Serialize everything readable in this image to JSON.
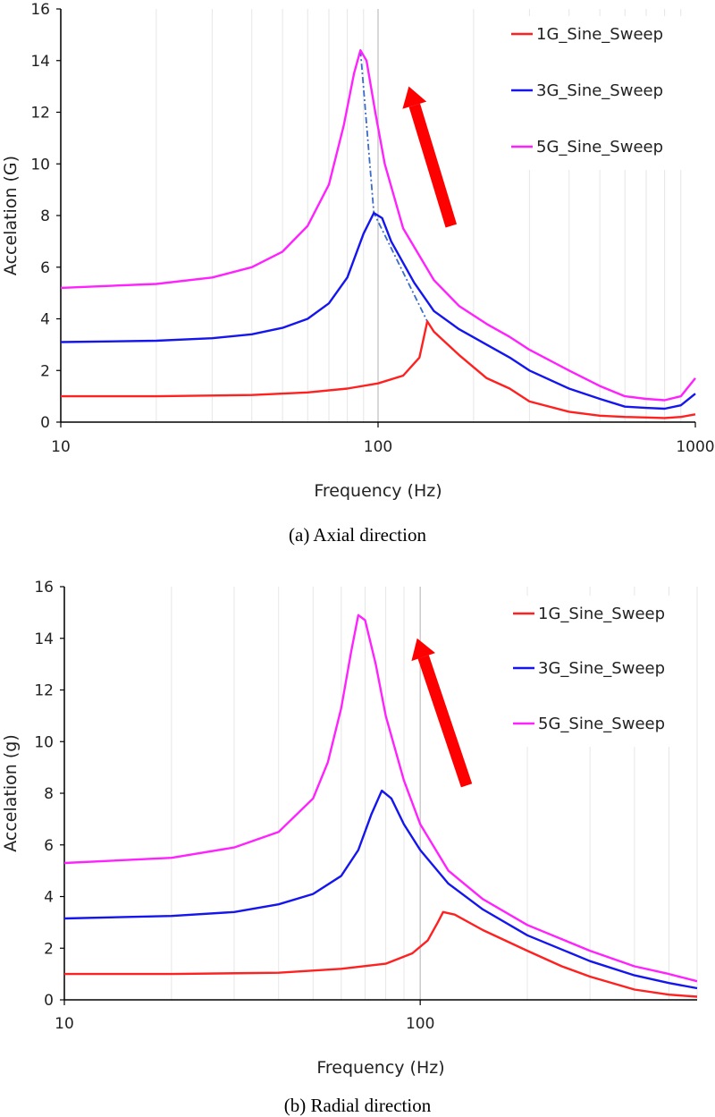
{
  "chart_data": [
    {
      "type": "line",
      "xscale": "log",
      "xlim": [
        10,
        1000
      ],
      "ylim": [
        0,
        16
      ],
      "yticks": [
        0,
        2,
        4,
        6,
        8,
        10,
        12,
        14,
        16
      ],
      "xtick_labels": [
        "10",
        "100",
        "1000"
      ],
      "xlabel": "Frequency (Hz)",
      "ylabel": "Accelation (G)",
      "caption": "(a) Axial direction",
      "legend_position": "top-right",
      "series": [
        {
          "name": "1G_Sine_Sweep",
          "color": "#ff2020",
          "points": [
            [
              10,
              1.0
            ],
            [
              20,
              1.0
            ],
            [
              40,
              1.05
            ],
            [
              60,
              1.15
            ],
            [
              80,
              1.3
            ],
            [
              100,
              1.5
            ],
            [
              120,
              1.8
            ],
            [
              135,
              2.5
            ],
            [
              143,
              3.9
            ],
            [
              150,
              3.5
            ],
            [
              180,
              2.6
            ],
            [
              220,
              1.7
            ],
            [
              260,
              1.3
            ],
            [
              300,
              0.8
            ],
            [
              400,
              0.4
            ],
            [
              500,
              0.25
            ],
            [
              600,
              0.2
            ],
            [
              700,
              0.18
            ],
            [
              800,
              0.16
            ],
            [
              900,
              0.2
            ],
            [
              1000,
              0.3
            ]
          ]
        },
        {
          "name": "3G_Sine_Sweep",
          "color": "#1515ee",
          "points": [
            [
              10,
              3.1
            ],
            [
              20,
              3.15
            ],
            [
              30,
              3.25
            ],
            [
              40,
              3.4
            ],
            [
              50,
              3.65
            ],
            [
              60,
              4.0
            ],
            [
              70,
              4.6
            ],
            [
              80,
              5.6
            ],
            [
              90,
              7.3
            ],
            [
              97,
              8.1
            ],
            [
              103,
              7.9
            ],
            [
              110,
              7.0
            ],
            [
              130,
              5.4
            ],
            [
              150,
              4.3
            ],
            [
              180,
              3.6
            ],
            [
              220,
              3.0
            ],
            [
              260,
              2.5
            ],
            [
              300,
              2.0
            ],
            [
              400,
              1.3
            ],
            [
              500,
              0.9
            ],
            [
              600,
              0.6
            ],
            [
              700,
              0.55
            ],
            [
              800,
              0.52
            ],
            [
              900,
              0.65
            ],
            [
              1000,
              1.1
            ]
          ]
        },
        {
          "name": "5G_Sine_Sweep",
          "color": "#ff22ff",
          "points": [
            [
              10,
              5.2
            ],
            [
              20,
              5.35
            ],
            [
              30,
              5.6
            ],
            [
              40,
              6.0
            ],
            [
              50,
              6.6
            ],
            [
              60,
              7.6
            ],
            [
              70,
              9.2
            ],
            [
              78,
              11.5
            ],
            [
              84,
              13.5
            ],
            [
              88,
              14.4
            ],
            [
              92,
              14.0
            ],
            [
              98,
              12.0
            ],
            [
              105,
              10.0
            ],
            [
              120,
              7.5
            ],
            [
              150,
              5.5
            ],
            [
              180,
              4.5
            ],
            [
              220,
              3.8
            ],
            [
              260,
              3.3
            ],
            [
              300,
              2.8
            ],
            [
              400,
              2.0
            ],
            [
              500,
              1.4
            ],
            [
              600,
              1.0
            ],
            [
              700,
              0.9
            ],
            [
              800,
              0.85
            ],
            [
              900,
              1.0
            ],
            [
              1000,
              1.7
            ]
          ]
        }
      ],
      "annotations": [
        {
          "kind": "dash-dot trend line",
          "color": "#3a6cc8",
          "points": [
            [
              88,
              14.4
            ],
            [
              97,
              8.1
            ],
            [
              143,
              3.9
            ]
          ]
        },
        {
          "kind": "arrow",
          "color": "#ff0000",
          "from": [
            170,
            7.6
          ],
          "to": [
            125,
            13.0
          ]
        }
      ]
    },
    {
      "type": "line",
      "xscale": "log",
      "xlim": [
        10,
        600
      ],
      "ylim": [
        0,
        16
      ],
      "yticks": [
        0,
        2,
        4,
        6,
        8,
        10,
        12,
        14,
        16
      ],
      "xtick_labels": [
        "10",
        "100"
      ],
      "xlabel": "Frequency (Hz)",
      "ylabel": "Accelation (g)",
      "caption": "(b) Radial direction",
      "legend_position": "top-right",
      "series": [
        {
          "name": "1G_Sine_Sweep",
          "color": "#ff2020",
          "points": [
            [
              10,
              1.0
            ],
            [
              20,
              1.0
            ],
            [
              40,
              1.05
            ],
            [
              60,
              1.2
            ],
            [
              80,
              1.4
            ],
            [
              95,
              1.8
            ],
            [
              105,
              2.3
            ],
            [
              112,
              3.0
            ],
            [
              116,
              3.4
            ],
            [
              125,
              3.3
            ],
            [
              150,
              2.7
            ],
            [
              200,
              1.9
            ],
            [
              250,
              1.3
            ],
            [
              300,
              0.9
            ],
            [
              400,
              0.4
            ],
            [
              500,
              0.2
            ],
            [
              600,
              0.12
            ]
          ]
        },
        {
          "name": "3G_Sine_Sweep",
          "color": "#1515ee",
          "points": [
            [
              10,
              3.15
            ],
            [
              20,
              3.25
            ],
            [
              30,
              3.4
            ],
            [
              40,
              3.7
            ],
            [
              50,
              4.1
            ],
            [
              60,
              4.8
            ],
            [
              67,
              5.8
            ],
            [
              73,
              7.2
            ],
            [
              78,
              8.1
            ],
            [
              83,
              7.8
            ],
            [
              90,
              6.8
            ],
            [
              100,
              5.8
            ],
            [
              120,
              4.5
            ],
            [
              150,
              3.5
            ],
            [
              200,
              2.5
            ],
            [
              300,
              1.5
            ],
            [
              400,
              0.95
            ],
            [
              500,
              0.65
            ],
            [
              600,
              0.45
            ]
          ]
        },
        {
          "name": "5G_Sine_Sweep",
          "color": "#ff22ff",
          "points": [
            [
              10,
              5.3
            ],
            [
              20,
              5.5
            ],
            [
              30,
              5.9
            ],
            [
              40,
              6.5
            ],
            [
              50,
              7.8
            ],
            [
              55,
              9.2
            ],
            [
              60,
              11.3
            ],
            [
              64,
              13.5
            ],
            [
              67,
              14.9
            ],
            [
              70,
              14.7
            ],
            [
              75,
              13.0
            ],
            [
              80,
              11.0
            ],
            [
              90,
              8.5
            ],
            [
              100,
              6.8
            ],
            [
              120,
              5.0
            ],
            [
              150,
              3.9
            ],
            [
              200,
              2.9
            ],
            [
              300,
              1.9
            ],
            [
              400,
              1.3
            ],
            [
              500,
              1.0
            ],
            [
              600,
              0.72
            ]
          ]
        }
      ],
      "annotations": [
        {
          "kind": "arrow",
          "color": "#ff0000",
          "from": [
            135,
            8.3
          ],
          "to": [
            98,
            14.0
          ]
        }
      ]
    }
  ]
}
